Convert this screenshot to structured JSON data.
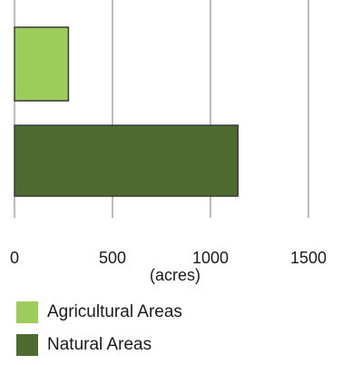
{
  "colors": {
    "agricultural": "#9ccc5a",
    "natural": "#4d6b2e",
    "bar_stroke": "#3a3a3a",
    "grid": "#7a7a7a"
  },
  "chart_data": {
    "type": "bar",
    "orientation": "horizontal",
    "categories": [
      "Agricultural Areas",
      "Natural Areas"
    ],
    "values": [
      275,
      1140
    ],
    "xlabel": "(acres)",
    "xlim": [
      0,
      1500
    ],
    "xticks": [
      0,
      500,
      1000,
      1500
    ],
    "grid": true,
    "legend_position": "bottom-left",
    "series": [
      {
        "name": "Agricultural Areas",
        "value": 275
      },
      {
        "name": "Natural Areas",
        "value": 1140
      }
    ]
  }
}
